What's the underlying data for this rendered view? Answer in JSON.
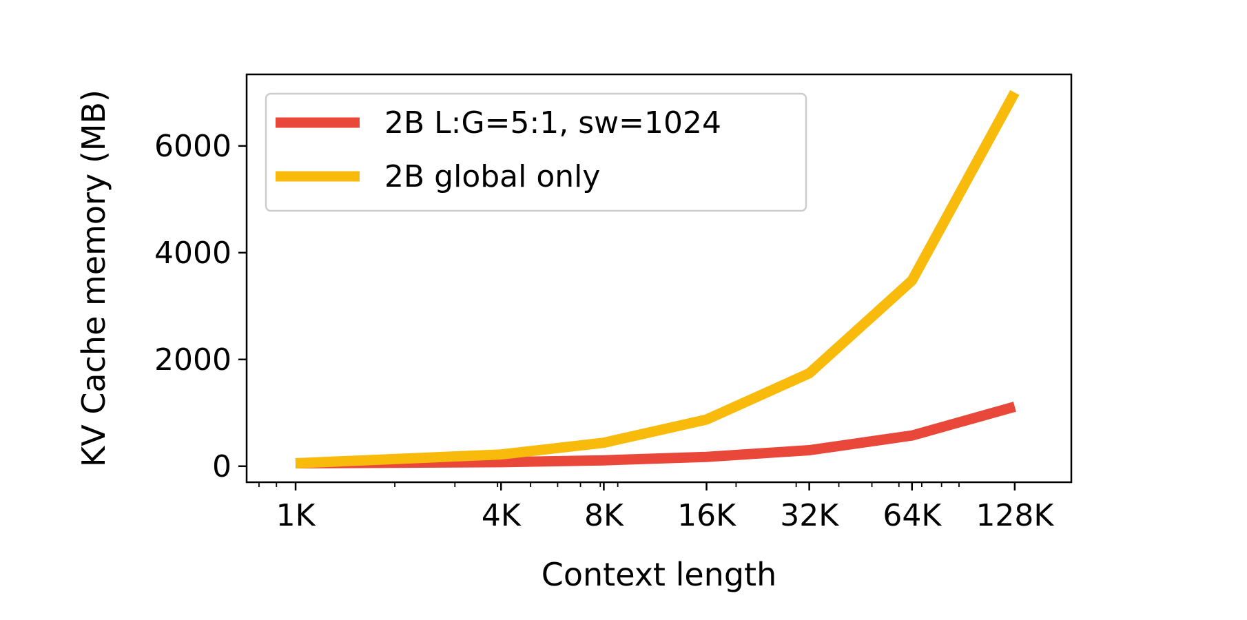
{
  "chart_data": {
    "type": "line",
    "title": "",
    "xlabel": "Context length",
    "ylabel": "KV Cache memory (MB)",
    "x_scale": "log2",
    "x": [
      1024,
      4096,
      8192,
      16384,
      32768,
      65536,
      131072
    ],
    "x_tick_labels": [
      "1K",
      "4K",
      "8K",
      "16K",
      "32K",
      "64K",
      "128K"
    ],
    "xlim": [
      736,
      192000
    ],
    "y_ticks": [
      0,
      2000,
      4000,
      6000
    ],
    "y_tick_labels": [
      "0",
      "2000",
      "4000",
      "6000"
    ],
    "ylim": [
      -300,
      7340
    ],
    "grid": false,
    "legend_position": "upper-left",
    "series": [
      {
        "name": "2B L:G=5:1, sw=1024",
        "color": "#e8473a",
        "values": [
          55,
          75,
          110,
          175,
          300,
          575,
          1115
        ]
      },
      {
        "name": "2B global only",
        "color": "#f9bb0b",
        "values": [
          55,
          220,
          440,
          875,
          1740,
          3480,
          7000
        ]
      }
    ]
  }
}
